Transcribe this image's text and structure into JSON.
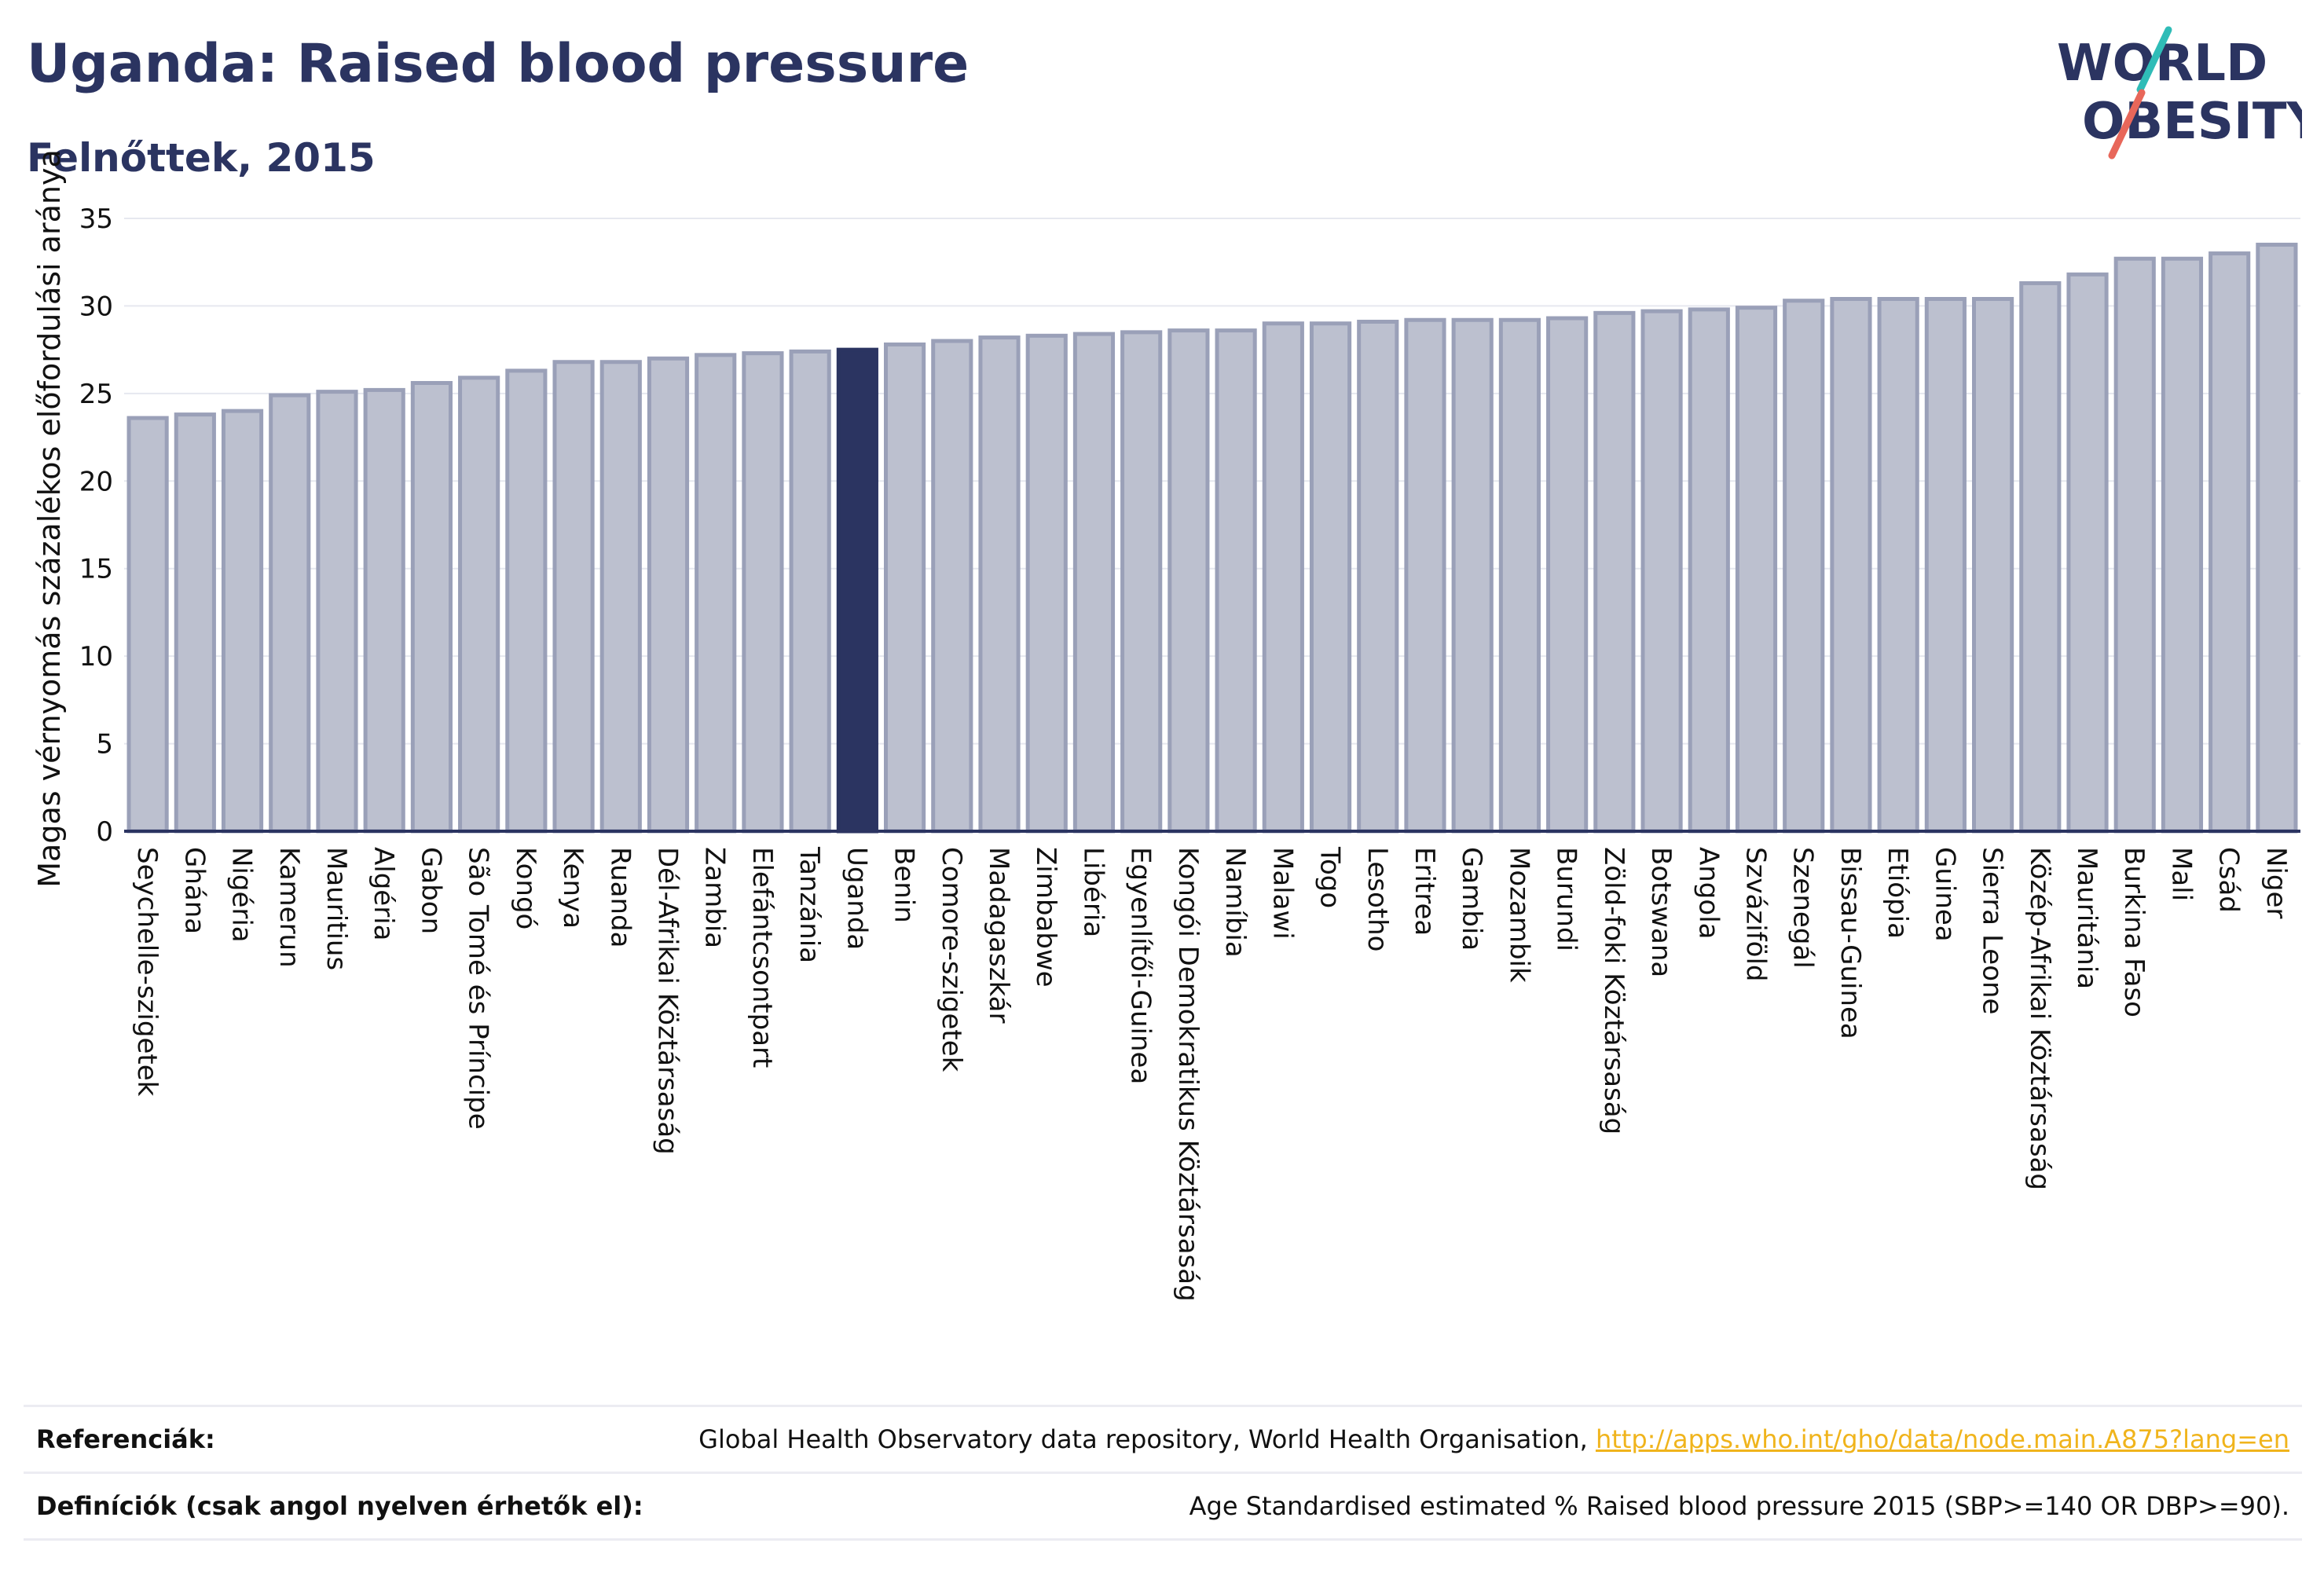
{
  "header": {
    "title": "Uganda: Raised blood pressure",
    "subtitle": "Felnőttek, 2015"
  },
  "logo": {
    "line1": "WORLD",
    "line2": "OBESITY"
  },
  "colors": {
    "highlight": "#2b3461",
    "bar_fill": "#bcc0cf",
    "bar_stroke": "#9aa0b8",
    "logo_slash_teal": "#2fbcb7",
    "logo_slash_coral": "#e8675a",
    "link": "#f0b41c"
  },
  "chart_data": {
    "type": "bar",
    "ylabel": "Magas vérnyomás százalékos előfordulási aránya",
    "xlabel": "",
    "ylim": [
      0,
      35
    ],
    "yticks": [
      0,
      5,
      10,
      15,
      20,
      25,
      30,
      35
    ],
    "grid": true,
    "highlight_category": "Uganda",
    "categories": [
      "Seychelle-szigetek",
      "Ghána",
      "Nigéria",
      "Kamerun",
      "Mauritius",
      "Algéria",
      "Gabon",
      "São Tomé és Príncipe",
      "Kongó",
      "Kenya",
      "Ruanda",
      "Dél-Afrikai Köztársaság",
      "Zambia",
      "Elefántcsontpart",
      "Tanzánia",
      "Uganda",
      "Benin",
      "Comore-szigetek",
      "Madagaszkár",
      "Zimbabwe",
      "Libéria",
      "Egyenlítői-Guinea",
      "Kongói Demokratikus Köztársaság",
      "Namíbia",
      "Malawi",
      "Togo",
      "Lesotho",
      "Eritrea",
      "Gambia",
      "Mozambik",
      "Burundi",
      "Zöld-foki Köztársaság",
      "Botswana",
      "Angola",
      "Szváziföld",
      "Szenegál",
      "Bissau-Guinea",
      "Etiópia",
      "Guinea",
      "Sierra Leone",
      "Közép-Afrikai Köztársaság",
      "Mauritánia",
      "Burkina Faso",
      "Mali",
      "Csád",
      "Niger"
    ],
    "values": [
      23.6,
      23.8,
      24.0,
      24.9,
      25.1,
      25.2,
      25.6,
      25.9,
      26.3,
      26.8,
      26.8,
      27.0,
      27.2,
      27.3,
      27.4,
      27.5,
      27.8,
      28.0,
      28.2,
      28.3,
      28.4,
      28.5,
      28.6,
      28.6,
      29.0,
      29.0,
      29.1,
      29.2,
      29.2,
      29.2,
      29.3,
      29.6,
      29.7,
      29.8,
      29.9,
      30.3,
      30.4,
      30.4,
      30.4,
      30.4,
      31.3,
      31.8,
      32.7,
      32.7,
      33.0,
      33.5
    ]
  },
  "footer": {
    "references_label": "Referenciák:",
    "references_text": "Global Health Observatory data repository, World Health Organisation,",
    "references_link": "http://apps.who.int/gho/data/node.main.A875?lang=en",
    "definitions_label": "Definíciók (csak angol nyelven érhetők el):",
    "definitions_text": "Age Standardised estimated % Raised blood pressure 2015 (SBP>=140 OR DBP>=90)."
  }
}
